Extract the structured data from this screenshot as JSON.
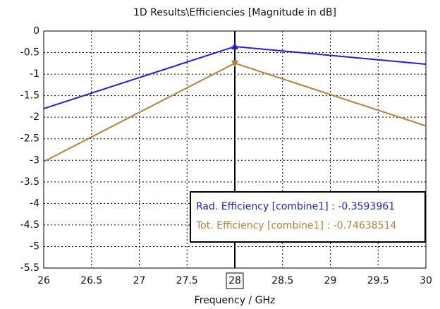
{
  "chart_data": {
    "type": "line",
    "title": "1D Results\\Efficiencies [Magnitude in dB]",
    "x_label": "Frequency / GHz",
    "x": [
      26,
      28,
      30
    ],
    "series": [
      {
        "name": "Rad. Efficiency [combine1] : -0.3593961",
        "color": "#1f1fe0",
        "values": [
          -1.8,
          -0.3593961,
          -0.77
        ],
        "marker": "triangle-up"
      },
      {
        "name": "Tot. Efficiency [combine1] : -0.74638514",
        "color": "#b5803e",
        "values": [
          -3.03,
          -0.74638514,
          -2.2
        ],
        "marker": "triangle-down"
      }
    ],
    "marker_x": 28,
    "xlim": [
      26,
      30
    ],
    "xticks": [
      26,
      26.5,
      27,
      27.5,
      28,
      28.5,
      29,
      29.5,
      30
    ],
    "ylim": [
      -5.5,
      0
    ],
    "yticks": [
      0,
      -0.5,
      -1,
      -1.5,
      -2,
      -2.5,
      -3,
      -3.5,
      -4,
      -4.5,
      -5,
      -5.5
    ],
    "grid": true,
    "legend_position": "lower right"
  }
}
